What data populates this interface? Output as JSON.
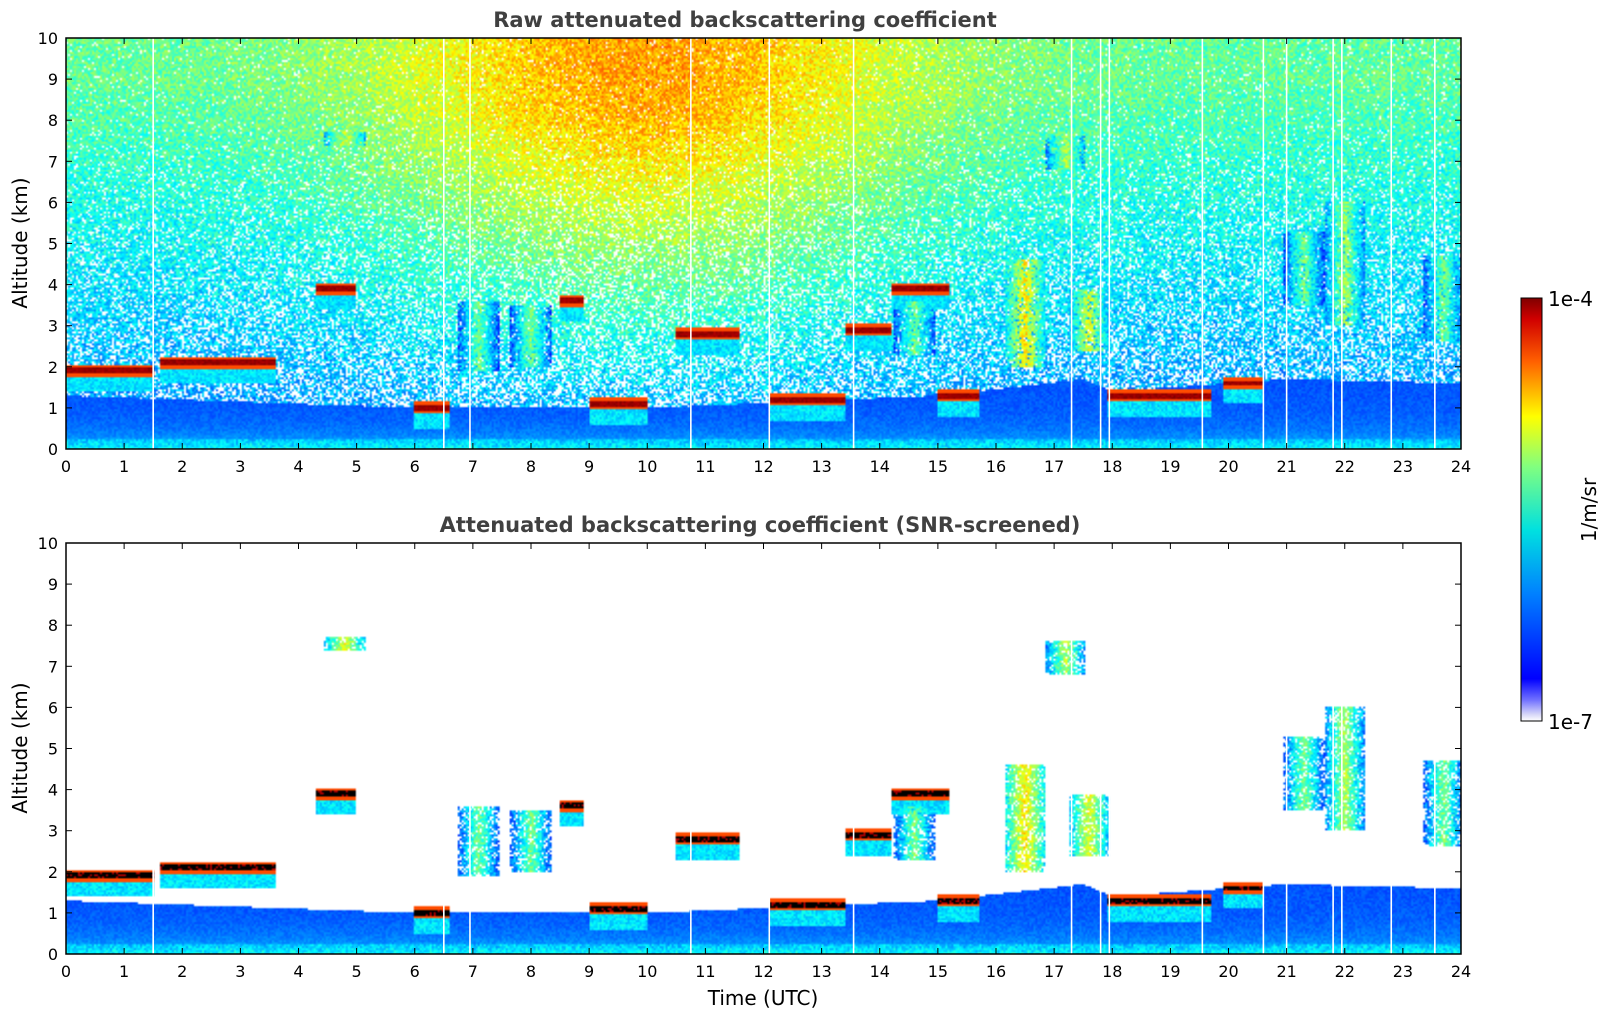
{
  "chart_data": [
    {
      "type": "heatmap",
      "title": "Raw attenuated backscattering coefficient",
      "xlabel": "",
      "ylabel": "Altitude (km)",
      "xlim": [
        0,
        24
      ],
      "ylim": [
        0,
        10
      ],
      "xticks": [
        "0",
        "1",
        "2",
        "3",
        "4",
        "5",
        "6",
        "7",
        "8",
        "9",
        "10",
        "11",
        "12",
        "13",
        "14",
        "15",
        "16",
        "17",
        "18",
        "19",
        "20",
        "21",
        "22",
        "23",
        "24"
      ],
      "yticks": [
        "0",
        "1",
        "2",
        "3",
        "4",
        "5",
        "6",
        "7",
        "8",
        "9",
        "10"
      ],
      "screened": false,
      "cloud_layers": [
        {
          "t0": 0.0,
          "t1": 1.5,
          "z": 1.9,
          "v": 1.0
        },
        {
          "t0": 1.6,
          "t1": 3.6,
          "z": 2.1,
          "v": 1.0
        },
        {
          "t0": 4.3,
          "t1": 5.0,
          "z": 3.9,
          "v": 1.0
        },
        {
          "t0": 6.0,
          "t1": 6.6,
          "z": 1.0,
          "v": 1.0
        },
        {
          "t0": 8.5,
          "t1": 8.9,
          "z": 3.6,
          "v": 1.0
        },
        {
          "t0": 9.0,
          "t1": 10.0,
          "z": 1.1,
          "v": 1.0
        },
        {
          "t0": 10.5,
          "t1": 11.6,
          "z": 2.8,
          "v": 1.0
        },
        {
          "t0": 12.1,
          "t1": 13.4,
          "z": 1.2,
          "v": 1.0
        },
        {
          "t0": 13.4,
          "t1": 14.2,
          "z": 2.9,
          "v": 1.0
        },
        {
          "t0": 14.2,
          "t1": 15.2,
          "z": 3.9,
          "v": 1.0
        },
        {
          "t0": 15.0,
          "t1": 15.7,
          "z": 1.3,
          "v": 1.0
        },
        {
          "t0": 17.9,
          "t1": 19.7,
          "z": 1.3,
          "v": 1.0
        },
        {
          "t0": 19.9,
          "t1": 20.6,
          "z": 1.6,
          "v": 1.0
        }
      ],
      "plumes": [
        {
          "t": 16.5,
          "zmin": 2.0,
          "zmax": 4.6,
          "v": 0.65
        },
        {
          "t": 17.6,
          "zmin": 2.4,
          "zmax": 3.9,
          "v": 0.6
        },
        {
          "t": 22.0,
          "zmin": 3.0,
          "zmax": 6.0,
          "v": 0.55
        },
        {
          "t": 21.3,
          "zmin": 3.5,
          "zmax": 5.3,
          "v": 0.5
        },
        {
          "t": 14.6,
          "zmin": 2.3,
          "zmax": 3.6,
          "v": 0.5
        },
        {
          "t": 8.0,
          "zmin": 2.0,
          "zmax": 3.5,
          "v": 0.5
        },
        {
          "t": 7.1,
          "zmin": 1.9,
          "zmax": 3.6,
          "v": 0.5
        },
        {
          "t": 23.7,
          "zmin": 2.6,
          "zmax": 4.7,
          "v": 0.5
        },
        {
          "t": 17.2,
          "zmin": 6.8,
          "zmax": 7.6,
          "v": 0.55
        },
        {
          "t": 4.8,
          "zmin": 7.4,
          "zmax": 7.7,
          "v": 0.6
        }
      ],
      "boundary_layer_top": [
        {
          "t": 0,
          "z": 1.3
        },
        {
          "t": 6,
          "z": 1.0
        },
        {
          "t": 10,
          "z": 1.0
        },
        {
          "t": 15,
          "z": 1.3
        },
        {
          "t": 17.5,
          "z": 1.7
        },
        {
          "t": 18,
          "z": 1.4
        },
        {
          "t": 21,
          "z": 1.7
        },
        {
          "t": 24,
          "z": 1.6
        }
      ]
    },
    {
      "type": "heatmap",
      "title": "Attenuated backscattering coefficient (SNR-screened)",
      "xlabel": "Time (UTC)",
      "ylabel": "Altitude (km)",
      "xlim": [
        0,
        24
      ],
      "ylim": [
        0,
        10
      ],
      "xticks": [
        "0",
        "1",
        "2",
        "3",
        "4",
        "5",
        "6",
        "7",
        "8",
        "9",
        "10",
        "11",
        "12",
        "13",
        "14",
        "15",
        "16",
        "17",
        "18",
        "19",
        "20",
        "21",
        "22",
        "23",
        "24"
      ],
      "yticks": [
        "0",
        "1",
        "2",
        "3",
        "4",
        "5",
        "6",
        "7",
        "8",
        "9",
        "10"
      ],
      "screened": true
    }
  ],
  "colorbar": {
    "max_label": "1e-4",
    "min_label": "1e-7",
    "unit": "1/m/sr",
    "colormap": "jet"
  },
  "gap_times": [
    1.5,
    6.5,
    6.95,
    10.75,
    12.1,
    13.55,
    17.3,
    17.8,
    17.95,
    19.55,
    20.6,
    21.0,
    21.8,
    21.95,
    22.8,
    23.55
  ]
}
